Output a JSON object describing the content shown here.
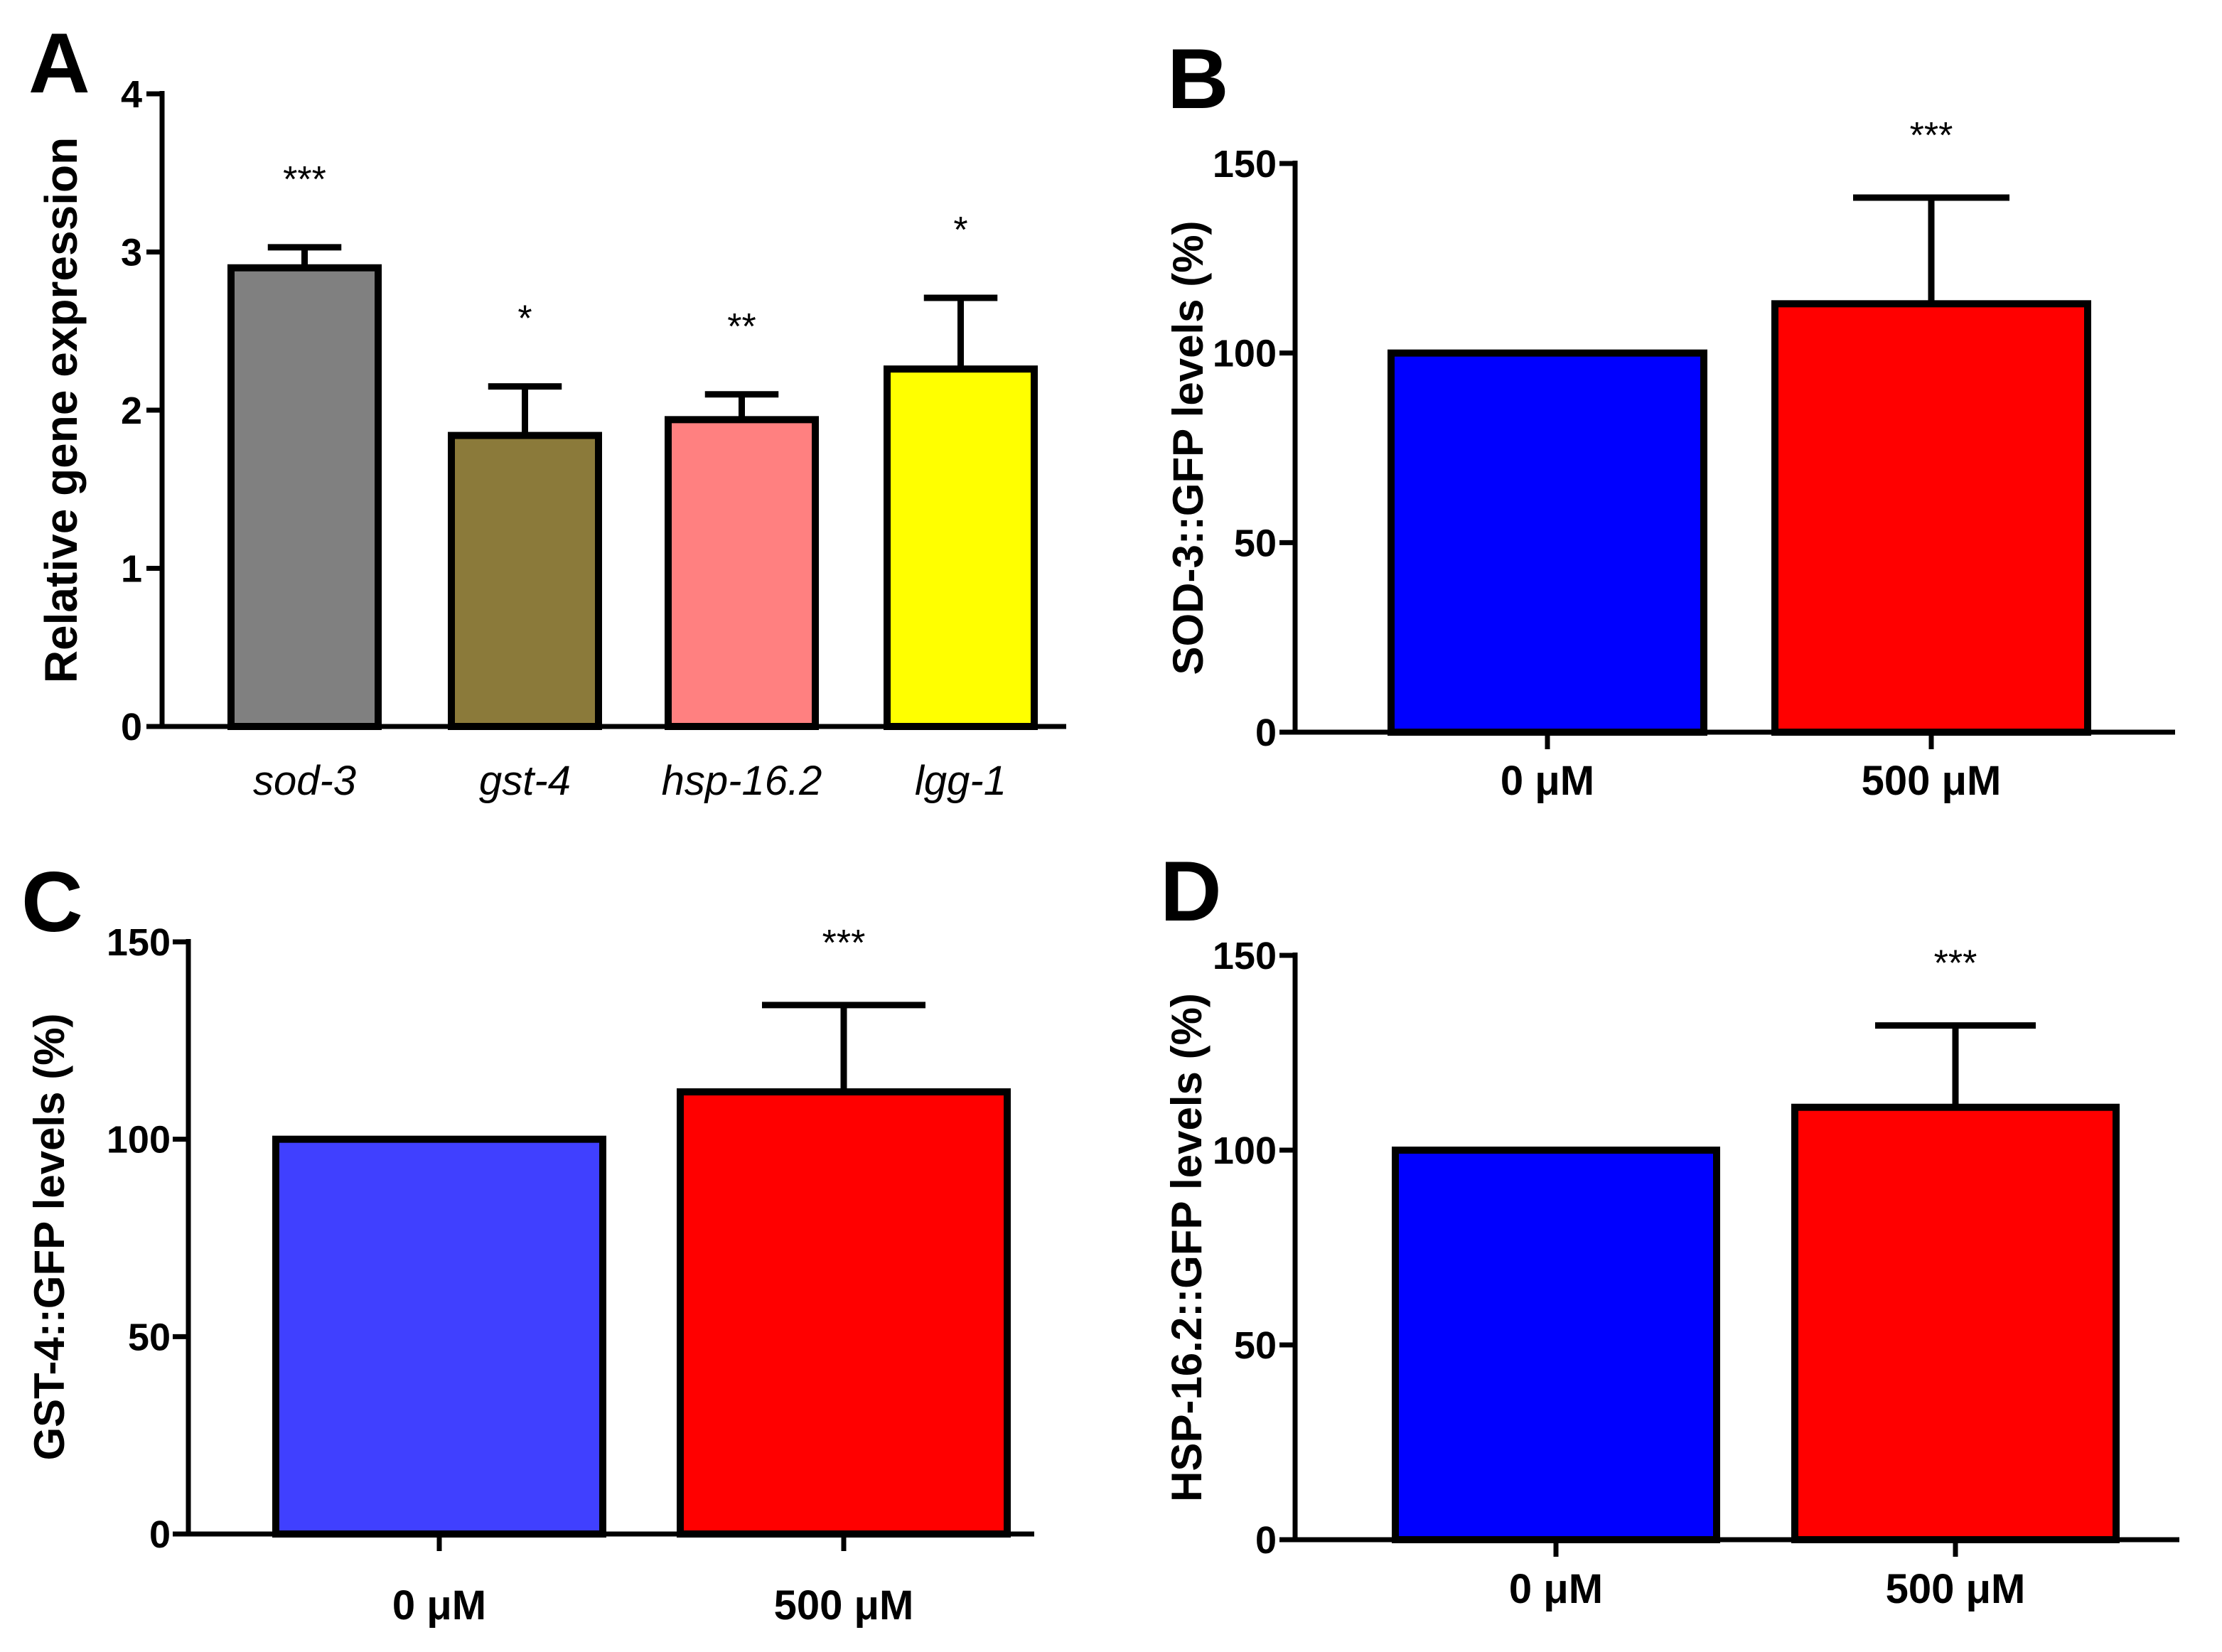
{
  "chart_data": [
    {
      "panel": "A",
      "type": "bar",
      "title": "",
      "ylabel": "Relative gene expression",
      "xlabel": "",
      "ylim": [
        0,
        4
      ],
      "yticks": [
        0,
        1,
        2,
        3,
        4
      ],
      "italic_categories": true,
      "categories": [
        "sod-3",
        "gst-4",
        "hsp-16.2",
        "lgg-1"
      ],
      "values": [
        2.9,
        1.84,
        1.94,
        2.26
      ],
      "errors": [
        0.13,
        0.31,
        0.16,
        0.45
      ],
      "significance": [
        "***",
        "*",
        "**",
        "*"
      ],
      "colors": [
        "#808080",
        "#8b7a3a",
        "#ff8080",
        "#ffff00"
      ]
    },
    {
      "panel": "B",
      "type": "bar",
      "title": "",
      "ylabel": "SOD-3::GFP levels (%)",
      "xlabel": "",
      "ylim": [
        0,
        150
      ],
      "yticks": [
        0,
        50,
        100,
        150
      ],
      "italic_categories": false,
      "categories": [
        "0 μM",
        "500 μM"
      ],
      "values": [
        100,
        113
      ],
      "errors": [
        0,
        28
      ],
      "significance": [
        "",
        "***"
      ],
      "colors": [
        "#0000ff",
        "#ff0000"
      ]
    },
    {
      "panel": "C",
      "type": "bar",
      "title": "",
      "ylabel": "GST-4::GFP levels (%)",
      "xlabel": "",
      "ylim": [
        0,
        150
      ],
      "yticks": [
        0,
        50,
        100,
        150
      ],
      "italic_categories": false,
      "categories": [
        "0 μM",
        "500 μM"
      ],
      "values": [
        100,
        112
      ],
      "errors": [
        0,
        22
      ],
      "significance": [
        "",
        "***"
      ],
      "colors": [
        "#4040ff",
        "#ff0000"
      ]
    },
    {
      "panel": "D",
      "type": "bar",
      "title": "",
      "ylabel": "HSP-16.2::GFP levels (%)",
      "xlabel": "",
      "ylim": [
        0,
        150
      ],
      "yticks": [
        0,
        50,
        100,
        150
      ],
      "italic_categories": false,
      "categories": [
        "0 μM",
        "500 μM"
      ],
      "values": [
        100,
        111
      ],
      "errors": [
        0,
        21
      ],
      "significance": [
        "",
        "***"
      ],
      "colors": [
        "#0000ff",
        "#ff0000"
      ]
    }
  ]
}
